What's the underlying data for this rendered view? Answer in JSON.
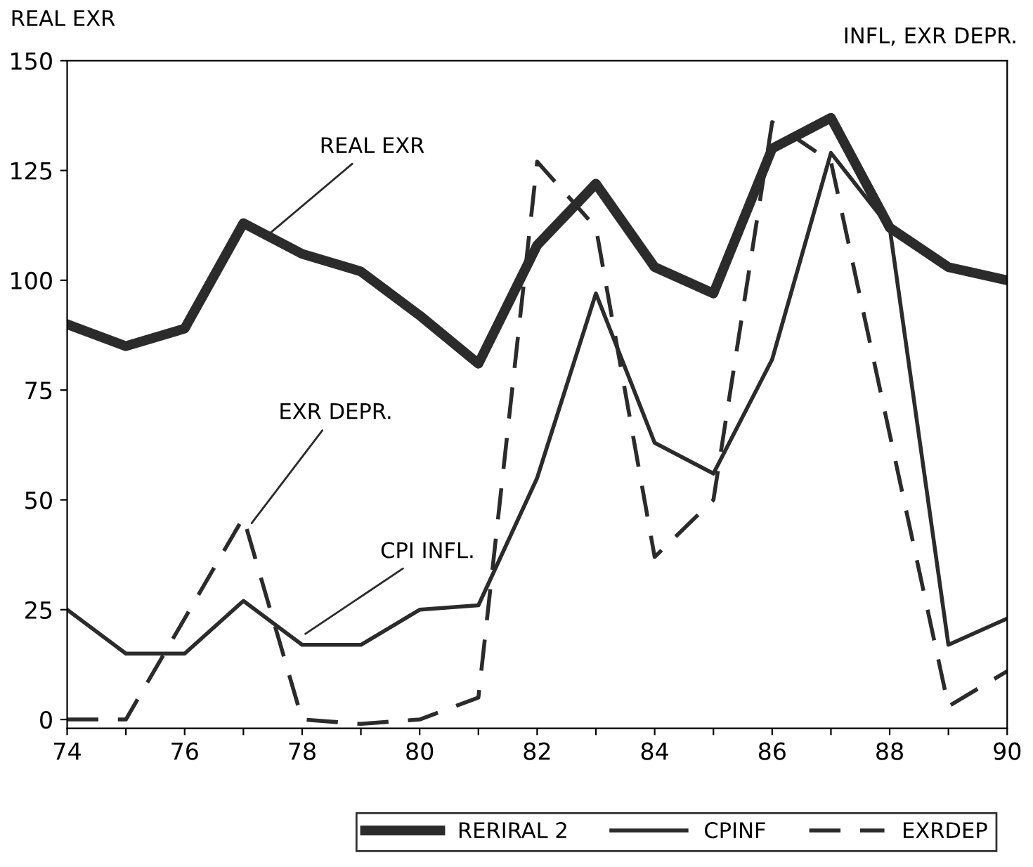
{
  "chart_data": {
    "type": "line",
    "ylabel": "REAL EXR",
    "y2label": "INFL, EXR DEPR.",
    "x": [
      74,
      75,
      76,
      77,
      78,
      79,
      80,
      81,
      82,
      83,
      84,
      85,
      86,
      87,
      88,
      89,
      90
    ],
    "series": [
      {
        "name": "RERIRAL 2",
        "color": "#2b2b2b",
        "line_style": "solid",
        "values": [
          90,
          85,
          89,
          113,
          106,
          102,
          92,
          81,
          108,
          122,
          103,
          97,
          130,
          137,
          112,
          103,
          100
        ]
      },
      {
        "name": "CPINF",
        "color": "#2b2b2b",
        "line_style": "solid",
        "values": [
          25,
          15,
          15,
          27,
          17,
          17,
          25,
          26,
          55,
          97,
          63,
          56,
          82,
          129,
          112,
          17,
          23
        ]
      },
      {
        "name": "EXRDEP",
        "color": "#2b2b2b",
        "line_style": "dashed",
        "values": [
          0,
          0,
          23,
          46,
          0,
          -1,
          0,
          5,
          127,
          112,
          37,
          50,
          136,
          127,
          65,
          3,
          11
        ]
      }
    ],
    "annotations": [
      {
        "text": "REAL EXR",
        "x": 77.3,
        "y": 109
      },
      {
        "text": "EXR DEPR.",
        "x": 77.1,
        "y": 44
      },
      {
        "text": "CPI INFL.",
        "x": 78,
        "y": 19
      }
    ],
    "xlim": [
      74,
      90
    ],
    "ylim": [
      -2,
      150
    ],
    "xticks": [
      74,
      {
        "value": 75,
        "label": null
      },
      76,
      {
        "value": 77,
        "label": null
      },
      78,
      {
        "value": 79,
        "label": null
      },
      80,
      {
        "value": 81,
        "label": null
      },
      82,
      {
        "value": 83,
        "label": null
      },
      84,
      {
        "value": 85,
        "label": null
      },
      86,
      {
        "value": 87,
        "label": null
      },
      88,
      {
        "value": 89,
        "label": null
      },
      90
    ],
    "yticks": [
      0,
      25,
      50,
      75,
      100,
      125,
      150
    ],
    "grid": false,
    "legend": "bottom",
    "marker": "none"
  }
}
